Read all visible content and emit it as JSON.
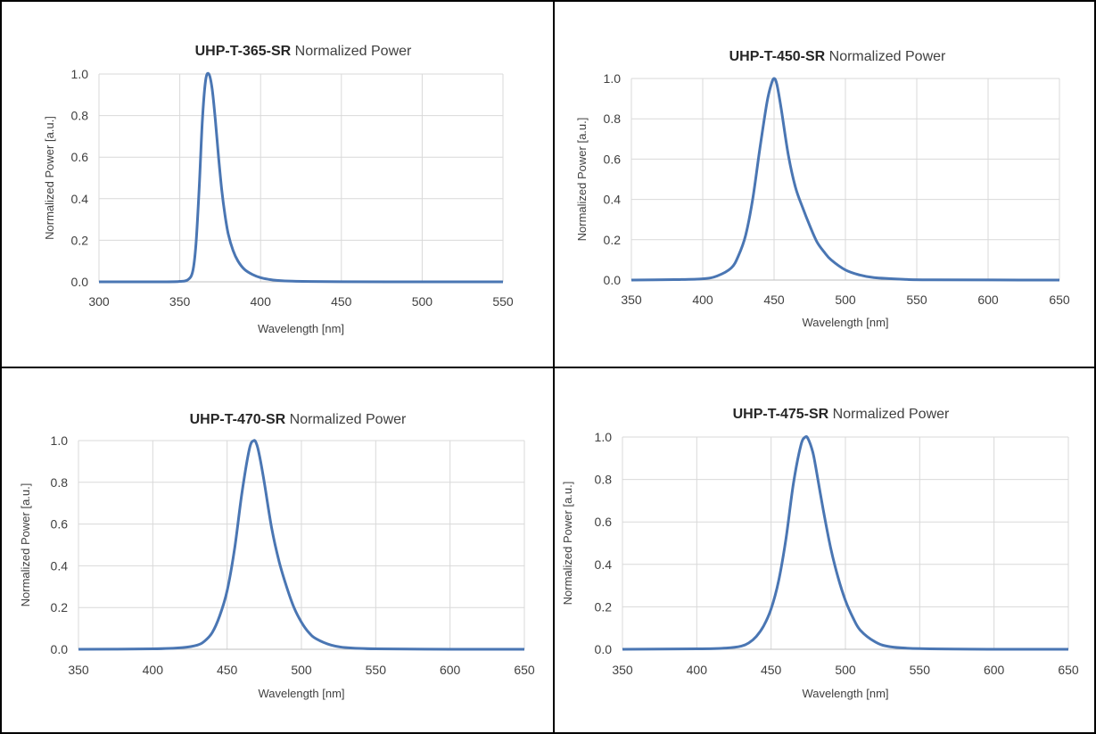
{
  "colors": {
    "line": "#4a76b3",
    "grid": "#d9d9d9",
    "axis": "#bfbfbf",
    "text": "#404040",
    "border": "#000000"
  },
  "chart_data": [
    {
      "type": "line",
      "title_bold": "UHP-T-365-SR",
      "title_rest": "Normalized Power",
      "xlabel": "Wavelength [nm]",
      "ylabel": "Normalized Power [a.u.]",
      "xlim": [
        300,
        550
      ],
      "ylim": [
        0,
        1
      ],
      "xticks": [
        300,
        350,
        400,
        450,
        500,
        550
      ],
      "yticks": [
        0,
        0.2,
        0.4,
        0.6,
        0.8,
        1.0
      ],
      "grid": true,
      "series": [
        {
          "x": [
            300,
            340,
            350,
            355,
            358,
            360,
            362,
            364,
            366,
            368,
            370,
            372,
            374,
            376,
            378,
            380,
            383,
            386,
            390,
            395,
            400,
            405,
            410,
            420,
            440,
            480,
            550
          ],
          "y": [
            0,
            0,
            0.002,
            0.01,
            0.05,
            0.18,
            0.45,
            0.78,
            0.97,
            1.0,
            0.93,
            0.78,
            0.6,
            0.44,
            0.32,
            0.23,
            0.15,
            0.1,
            0.06,
            0.035,
            0.02,
            0.012,
            0.007,
            0.003,
            0.001,
            0,
            0
          ]
        }
      ]
    },
    {
      "type": "line",
      "title_bold": "UHP-T-450-SR",
      "title_rest": "Normalized Power",
      "xlabel": "Wavelength [nm]",
      "ylabel": "Normalized Power [a.u.]",
      "xlim": [
        350,
        650
      ],
      "ylim": [
        0,
        1
      ],
      "xticks": [
        350,
        400,
        450,
        500,
        550,
        600,
        650
      ],
      "yticks": [
        0,
        0.2,
        0.4,
        0.6,
        0.8,
        1.0
      ],
      "grid": true,
      "series": [
        {
          "x": [
            350,
            380,
            400,
            410,
            420,
            425,
            430,
            435,
            440,
            445,
            448,
            450,
            452,
            455,
            460,
            465,
            470,
            475,
            480,
            485,
            490,
            500,
            510,
            520,
            540,
            560,
            650
          ],
          "y": [
            0,
            0.002,
            0.006,
            0.02,
            0.06,
            0.12,
            0.22,
            0.4,
            0.65,
            0.88,
            0.97,
            1.0,
            0.97,
            0.85,
            0.62,
            0.46,
            0.36,
            0.27,
            0.19,
            0.14,
            0.1,
            0.05,
            0.025,
            0.012,
            0.004,
            0.001,
            0
          ]
        }
      ]
    },
    {
      "type": "line",
      "title_bold": "UHP-T-470-SR",
      "title_rest": "Normalized Power",
      "xlabel": "Wavelength [nm]",
      "ylabel": "Normalized Power [a.u.]",
      "xlim": [
        350,
        650
      ],
      "ylim": [
        0,
        1
      ],
      "xticks": [
        350,
        400,
        450,
        500,
        550,
        600,
        650
      ],
      "yticks": [
        0,
        0.2,
        0.4,
        0.6,
        0.8,
        1.0
      ],
      "grid": true,
      "series": [
        {
          "x": [
            350,
            400,
            420,
            430,
            435,
            440,
            445,
            450,
            455,
            460,
            465,
            468,
            470,
            472,
            475,
            480,
            485,
            490,
            495,
            500,
            505,
            510,
            520,
            530,
            550,
            600,
            650
          ],
          "y": [
            0,
            0.002,
            0.008,
            0.02,
            0.04,
            0.08,
            0.16,
            0.28,
            0.48,
            0.75,
            0.96,
            1.0,
            0.98,
            0.92,
            0.8,
            0.58,
            0.42,
            0.3,
            0.2,
            0.13,
            0.08,
            0.05,
            0.02,
            0.008,
            0.002,
            0,
            0
          ]
        }
      ]
    },
    {
      "type": "line",
      "title_bold": "UHP-T-475-SR",
      "title_rest": "Normalized Power",
      "xlabel": "Wavelength [nm]",
      "ylabel": "Normalized Power [a.u.]",
      "xlim": [
        350,
        650
      ],
      "ylim": [
        0,
        1
      ],
      "xticks": [
        350,
        400,
        450,
        500,
        550,
        600,
        650
      ],
      "yticks": [
        0,
        0.2,
        0.4,
        0.6,
        0.8,
        1.0
      ],
      "grid": true,
      "series": [
        {
          "x": [
            350,
            400,
            420,
            430,
            435,
            440,
            445,
            450,
            455,
            460,
            465,
            470,
            473,
            475,
            478,
            480,
            485,
            490,
            495,
            500,
            505,
            510,
            520,
            530,
            550,
            600,
            650
          ],
          "y": [
            0,
            0.002,
            0.006,
            0.015,
            0.03,
            0.06,
            0.11,
            0.19,
            0.32,
            0.52,
            0.78,
            0.96,
            1.0,
            0.99,
            0.93,
            0.86,
            0.66,
            0.48,
            0.34,
            0.23,
            0.15,
            0.09,
            0.035,
            0.012,
            0.003,
            0,
            0
          ]
        }
      ]
    }
  ]
}
